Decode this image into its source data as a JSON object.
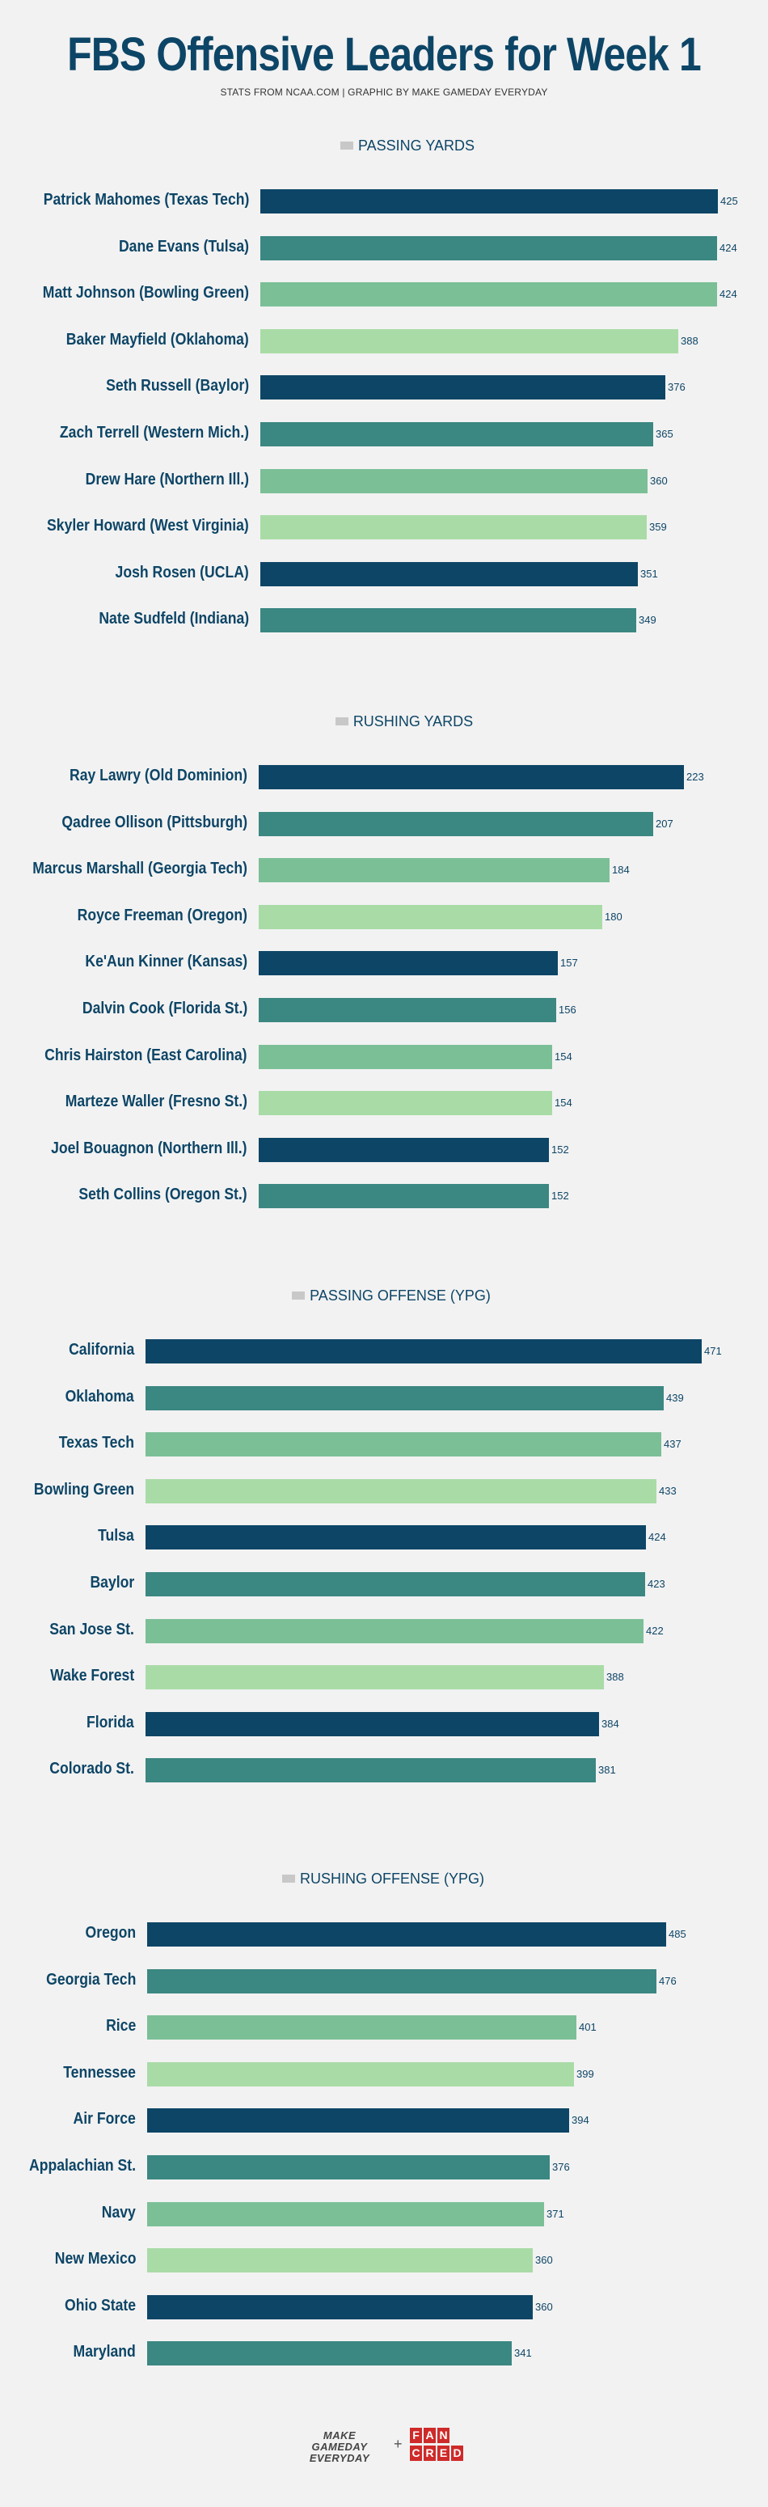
{
  "header": {
    "title": "FBS Offensive Leaders for Week 1",
    "subtitle": "STATS FROM NCAA.COM   |   GRAPHIC BY MAKE GAMEDAY EVERYDAY"
  },
  "palette": [
    "#0d4566",
    "#3b8782",
    "#7bbf97",
    "#a9dba6"
  ],
  "chart_data": [
    {
      "type": "bar",
      "orientation": "horizontal",
      "legend": "PASSING YARDS",
      "categories": [
        "Patrick Mahomes (Texas Tech)",
        "Dane Evans (Tulsa)",
        "Matt Johnson (Bowling Green)",
        "Baker Mayfield (Oklahoma)",
        "Seth Russell (Baylor)",
        "Zach Terrell (Western Mich.)",
        "Drew Hare (Northern Ill.)",
        "Skyler Howard (West Virginia)",
        "Josh Rosen (UCLA)",
        "Nate Sudfeld (Indiana)"
      ],
      "values": [
        425,
        424,
        424,
        388,
        376,
        365,
        360,
        359,
        351,
        349
      ],
      "value_labels": [
        "425",
        "424",
        "424",
        "388",
        "376",
        "365",
        "360",
        "359",
        "351",
        "349"
      ],
      "xlim": [
        0,
        425
      ]
    },
    {
      "type": "bar",
      "orientation": "horizontal",
      "legend": "RUSHING YARDS",
      "categories": [
        "Ray Lawry (Old Dominion)",
        "Qadree Ollison (Pittsburgh)",
        "Marcus Marshall (Georgia Tech)",
        "Royce Freeman (Oregon)",
        "Ke'Aun Kinner (Kansas)",
        "Dalvin Cook (Florida St.)",
        "Chris Hairston (East Carolina)",
        "Marteze Waller (Fresno St.)",
        "Joel Bouagnon (Northern Ill.)",
        "Seth Collins (Oregon St.)"
      ],
      "values": [
        223,
        207,
        184,
        180,
        157,
        156,
        154,
        154,
        152,
        152
      ],
      "value_labels": [
        "223",
        "207",
        "184",
        "180",
        "157",
        "156",
        "154",
        "154",
        "152",
        "152"
      ],
      "xlim": [
        0,
        223
      ]
    },
    {
      "type": "bar",
      "orientation": "horizontal",
      "legend": "PASSING OFFENSE (YPG)",
      "categories": [
        "California",
        "Oklahoma",
        "Texas Tech",
        "Bowling Green",
        "Tulsa",
        "Baylor",
        "San Jose St.",
        "Wake Forest",
        "Florida",
        "Colorado St."
      ],
      "values": [
        471,
        439,
        437,
        433,
        424,
        423,
        422,
        388,
        384,
        381
      ],
      "value_labels": [
        "471",
        "439",
        "437",
        "433",
        "424",
        "423",
        "422",
        "388",
        "384",
        "381"
      ],
      "xlim": [
        0,
        471
      ]
    },
    {
      "type": "bar",
      "orientation": "horizontal",
      "legend": "RUSHING OFFENSE (YPG)",
      "categories": [
        "Oregon",
        "Georgia Tech",
        "Rice",
        "Tennessee",
        "Air Force",
        "Appalachian St.",
        "Navy",
        "New Mexico",
        "Ohio State",
        "Maryland"
      ],
      "values": [
        485,
        476,
        401,
        399,
        394,
        376,
        371,
        360,
        360,
        341
      ],
      "value_labels": [
        "485",
        "476",
        "401",
        "399",
        "394",
        "376",
        "371",
        "360",
        "360",
        "341"
      ],
      "xlim": [
        0,
        485
      ]
    }
  ],
  "footer": {
    "brand_line1": "MAKE GAMEDAY",
    "brand_line2": "EVERYDAY",
    "plus": "+",
    "partner_letters": [
      "F",
      "A",
      "N",
      "C",
      "R",
      "E",
      "D"
    ]
  }
}
